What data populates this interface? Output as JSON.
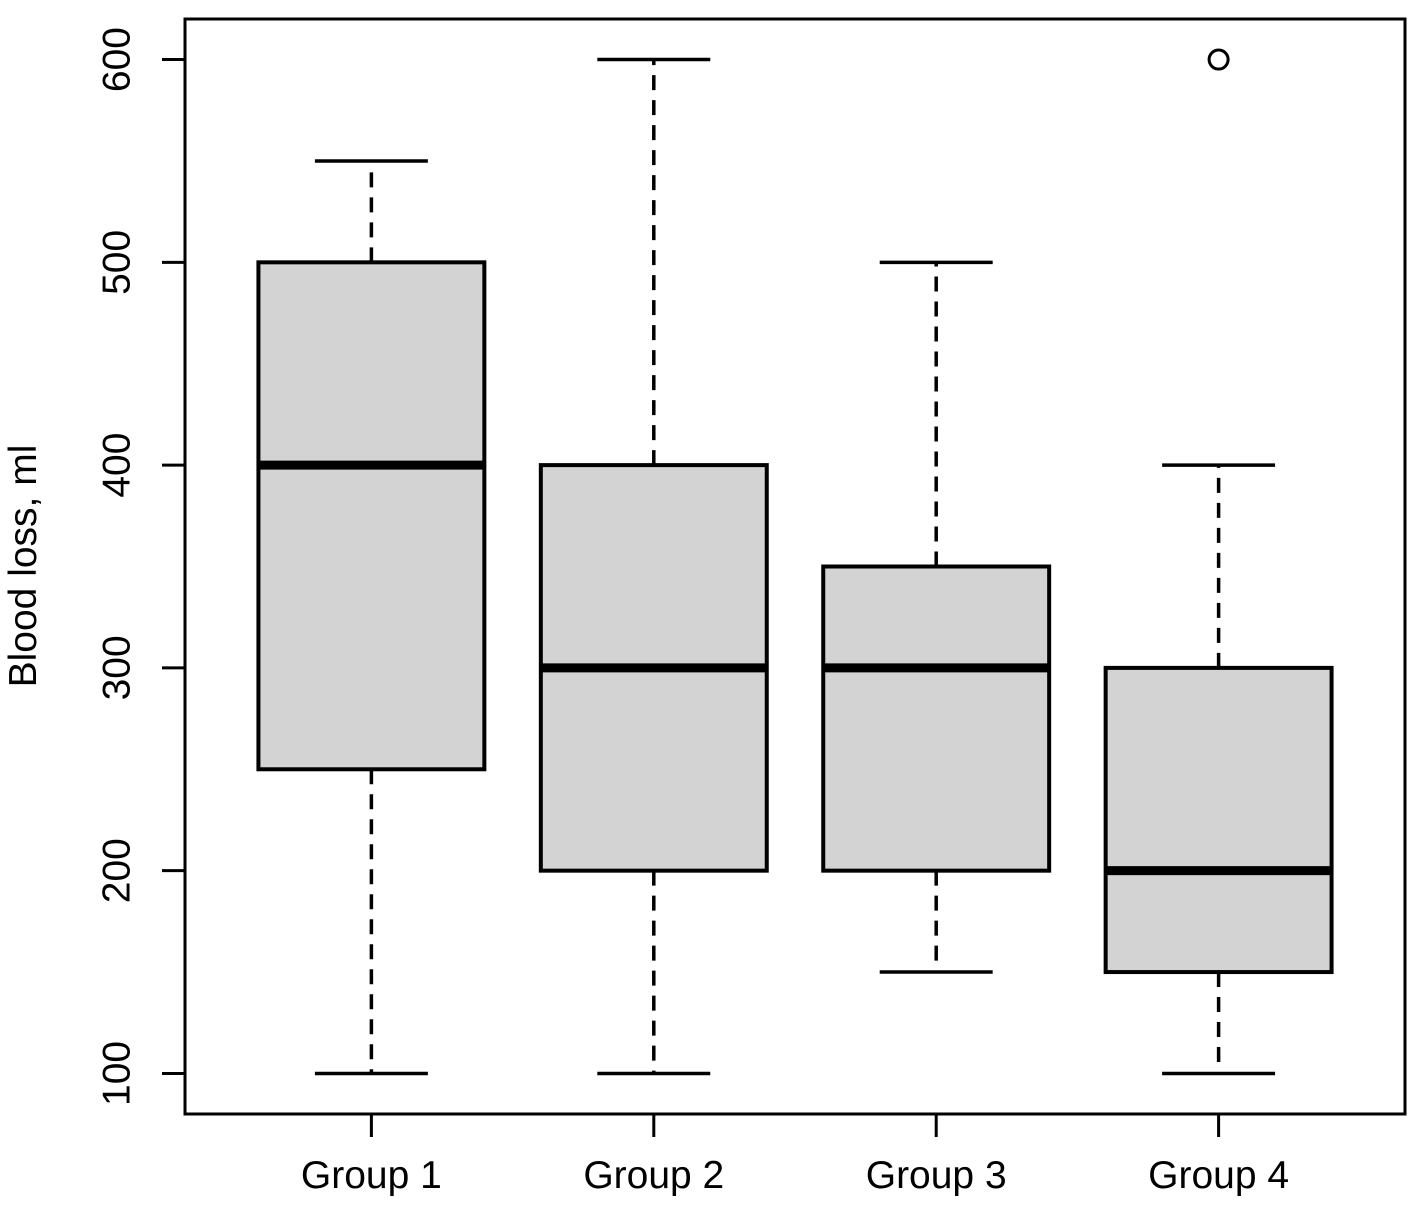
{
  "figure": {
    "background_color": "#FFFFFF",
    "line_color": "#000000",
    "box_fill_color": "#D3D3D3"
  },
  "chart_data": {
    "type": "boxplot",
    "title": "",
    "xlabel": "",
    "ylabel": "Blood loss, ml",
    "categories": [
      "Group 1",
      "Group 2",
      "Group 3",
      "Group 4"
    ],
    "yticks": [
      100,
      200,
      300,
      400,
      500,
      600
    ],
    "ylim": [
      80,
      620
    ],
    "grid": false,
    "legend": null,
    "boxes": [
      {
        "category": "Group 1",
        "whisker_low": 100,
        "q1": 250,
        "median": 400,
        "q3": 500,
        "whisker_high": 550,
        "outliers": []
      },
      {
        "category": "Group 2",
        "whisker_low": 100,
        "q1": 200,
        "median": 300,
        "q3": 400,
        "whisker_high": 600,
        "outliers": []
      },
      {
        "category": "Group 3",
        "whisker_low": 150,
        "q1": 200,
        "median": 300,
        "q3": 350,
        "whisker_high": 500,
        "outliers": []
      },
      {
        "category": "Group 4",
        "whisker_low": 100,
        "q1": 150,
        "median": 200,
        "q3": 300,
        "whisker_high": 400,
        "outliers": [
          600
        ]
      }
    ],
    "style": {
      "box_fill": "#D3D3D3",
      "line_color": "#000000",
      "whisker_style": "dashed",
      "outlier_marker": "open-circle"
    }
  }
}
